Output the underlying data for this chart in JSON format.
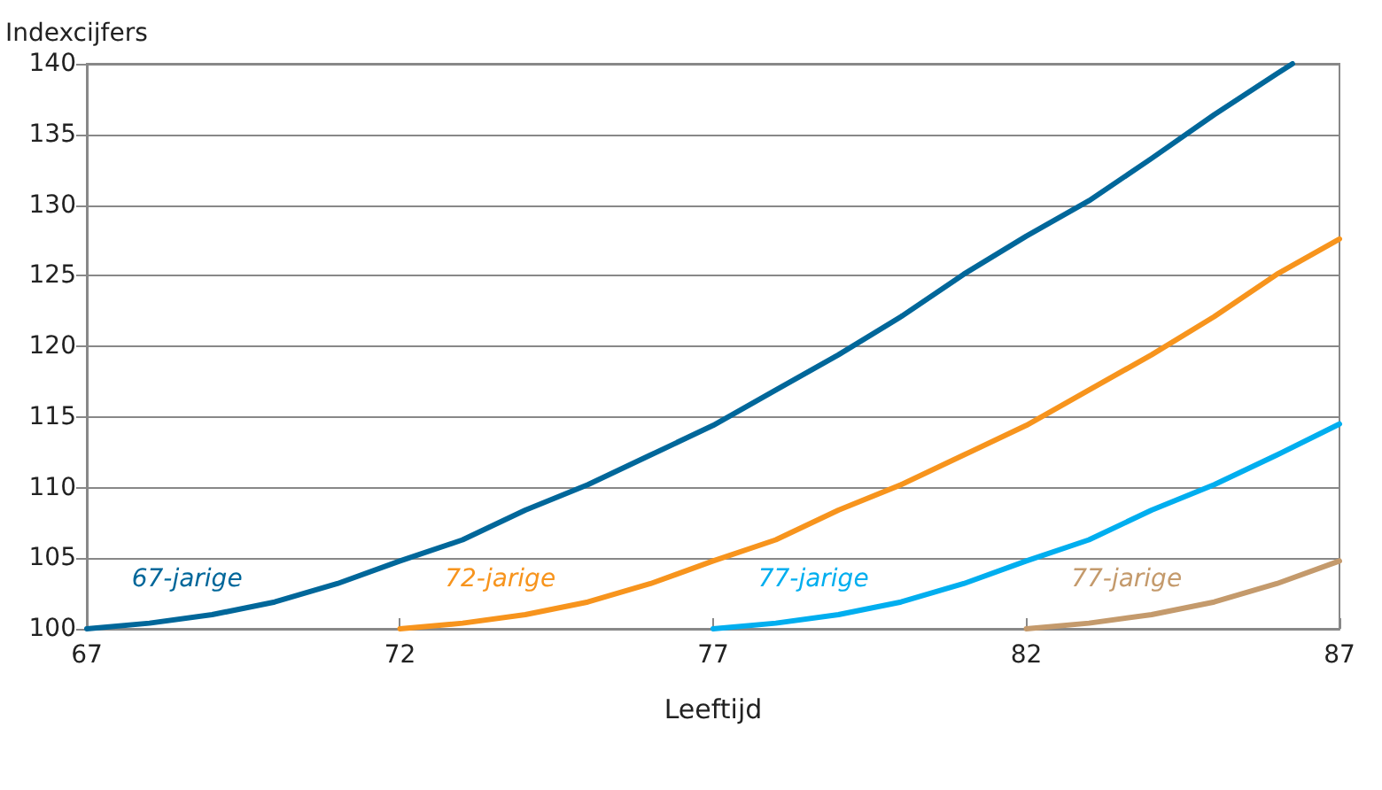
{
  "chart_data": {
    "type": "line",
    "xlabel": "Leeftijd",
    "ylabel": "Indexcijfers",
    "xlim": [
      67,
      87
    ],
    "xticks": [
      67,
      72,
      77,
      82,
      87
    ],
    "ylim": [
      100,
      140
    ],
    "yticks": [
      100,
      105,
      110,
      115,
      120,
      125,
      130,
      135,
      140
    ],
    "grid": "y",
    "legend": false,
    "marker": "none",
    "line_style": "solid",
    "series": [
      {
        "name": "67-jarige",
        "color": "#00679a",
        "x": [
          67,
          68,
          69,
          70,
          71,
          72,
          73,
          74,
          75,
          76,
          77,
          78,
          79,
          80,
          81,
          82,
          83,
          84,
          85,
          86,
          86.25
        ],
        "values": [
          100,
          100.4,
          101,
          101.9,
          103.2,
          104.8,
          106.3,
          108.4,
          110.2,
          112.3,
          114.4,
          116.9,
          119.4,
          122.1,
          125.1,
          127.8,
          130.3,
          133.3,
          136.4,
          139.3,
          140
        ]
      },
      {
        "name": "72-jarige",
        "color": "#f7941d",
        "x": [
          72,
          73,
          74,
          75,
          76,
          77,
          78,
          79,
          80,
          81,
          82,
          83,
          84,
          85,
          86,
          87
        ],
        "values": [
          100,
          100.4,
          101,
          101.9,
          103.2,
          104.8,
          106.3,
          108.4,
          110.2,
          112.3,
          114.4,
          116.9,
          119.4,
          122.1,
          125.1,
          127.6
        ]
      },
      {
        "name": "77-jarige",
        "color": "#00aeef",
        "x": [
          77,
          78,
          79,
          80,
          81,
          82,
          83,
          84,
          85,
          86,
          87
        ],
        "values": [
          100,
          100.4,
          101,
          101.9,
          103.2,
          104.8,
          106.3,
          108.4,
          110.2,
          112.3,
          114.5
        ]
      },
      {
        "name": "77-jarige",
        "color": "#c49a6c",
        "x": [
          82,
          83,
          84,
          85,
          86,
          87
        ],
        "values": [
          100,
          100.4,
          101,
          101.9,
          103.2,
          104.8
        ]
      }
    ]
  }
}
